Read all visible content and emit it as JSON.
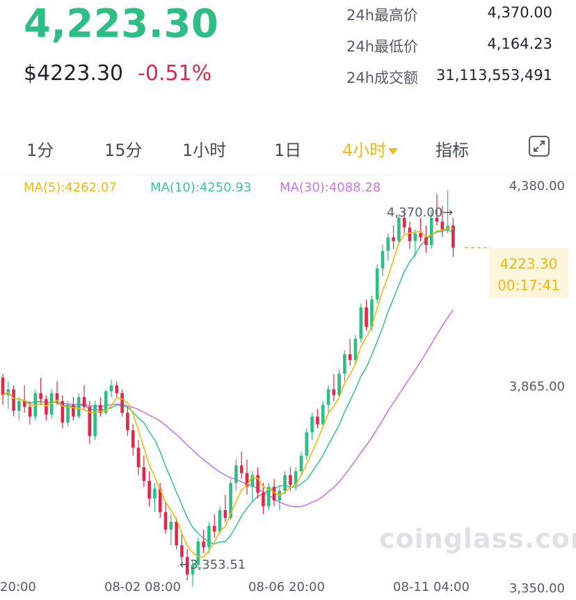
{
  "header": {
    "price": "4,223.30",
    "usd_price": "$4223.30",
    "change": "-0.51%"
  },
  "stats": [
    {
      "label": "24h最高价",
      "value": "4,370.00"
    },
    {
      "label": "24h最低价",
      "value": "4,164.23"
    },
    {
      "label": "24h成交额",
      "value": "31,113,553,491"
    }
  ],
  "tabs": [
    {
      "label": "1分",
      "active": false
    },
    {
      "label": "15分",
      "active": false
    },
    {
      "label": "1小时",
      "active": false
    },
    {
      "label": "1日",
      "active": false
    },
    {
      "label": "4小时",
      "active": true
    },
    {
      "label": "指标",
      "active": false
    }
  ],
  "indicators": {
    "ma5": "MA(5):4262.07",
    "ma10": "MA(10):4250.93",
    "ma30": "MA(30):4088.28"
  },
  "colors": {
    "up": "#2ebd85",
    "down": "#e0294a",
    "ma5": "#f0b90b",
    "ma10": "#3cc49a",
    "ma30": "#c777e8",
    "accent": "#f0b90b"
  },
  "icons": {
    "expand": "expand-icon",
    "dropdown": "chevron-down-icon"
  },
  "watermark": "coinglass.com",
  "chart_data": {
    "type": "candlestick",
    "y_ticks": [
      "4,380.00",
      "3,865.00",
      "3,350.00"
    ],
    "x_ticks": [
      "20:00",
      "08-02 08:00",
      "08-06 20:00",
      "08-11 04:00"
    ],
    "ylim": [
      3350,
      4380
    ],
    "current_price": "4223.30",
    "countdown": "00:17:41",
    "high_label": "4,370.00",
    "low_label": "3,353.51",
    "candles": [
      [
        3890,
        3900,
        3820,
        3845
      ],
      [
        3845,
        3880,
        3810,
        3860
      ],
      [
        3860,
        3870,
        3790,
        3805
      ],
      [
        3805,
        3840,
        3780,
        3830
      ],
      [
        3830,
        3870,
        3800,
        3815
      ],
      [
        3815,
        3830,
        3770,
        3790
      ],
      [
        3790,
        3860,
        3780,
        3850
      ],
      [
        3850,
        3890,
        3820,
        3835
      ],
      [
        3835,
        3845,
        3780,
        3795
      ],
      [
        3795,
        3860,
        3785,
        3850
      ],
      [
        3850,
        3880,
        3820,
        3830
      ],
      [
        3830,
        3845,
        3760,
        3775
      ],
      [
        3775,
        3830,
        3765,
        3820
      ],
      [
        3820,
        3840,
        3780,
        3790
      ],
      [
        3790,
        3850,
        3785,
        3840
      ],
      [
        3840,
        3870,
        3810,
        3815
      ],
      [
        3815,
        3830,
        3720,
        3740
      ],
      [
        3740,
        3830,
        3730,
        3820
      ],
      [
        3820,
        3840,
        3790,
        3800
      ],
      [
        3800,
        3860,
        3795,
        3855
      ],
      [
        3855,
        3885,
        3840,
        3870
      ],
      [
        3870,
        3880,
        3840,
        3850
      ],
      [
        3850,
        3860,
        3790,
        3800
      ],
      [
        3800,
        3815,
        3740,
        3755
      ],
      [
        3755,
        3770,
        3690,
        3710
      ],
      [
        3710,
        3730,
        3640,
        3660
      ],
      [
        3660,
        3690,
        3610,
        3625
      ],
      [
        3625,
        3650,
        3560,
        3580
      ],
      [
        3580,
        3620,
        3545,
        3605
      ],
      [
        3605,
        3620,
        3530,
        3545
      ],
      [
        3545,
        3570,
        3490,
        3500
      ],
      [
        3500,
        3540,
        3460,
        3520
      ],
      [
        3520,
        3530,
        3450,
        3460
      ],
      [
        3460,
        3490,
        3410,
        3430
      ],
      [
        3430,
        3450,
        3370,
        3385
      ],
      [
        3385,
        3420,
        3353.51,
        3410
      ],
      [
        3410,
        3480,
        3400,
        3470
      ],
      [
        3470,
        3500,
        3440,
        3455
      ],
      [
        3455,
        3520,
        3440,
        3510
      ],
      [
        3510,
        3540,
        3480,
        3495
      ],
      [
        3495,
        3560,
        3490,
        3550
      ],
      [
        3550,
        3590,
        3520,
        3530
      ],
      [
        3530,
        3630,
        3525,
        3620
      ],
      [
        3620,
        3680,
        3600,
        3665
      ],
      [
        3665,
        3700,
        3630,
        3645
      ],
      [
        3645,
        3680,
        3590,
        3610
      ],
      [
        3610,
        3650,
        3570,
        3640
      ],
      [
        3640,
        3660,
        3580,
        3595
      ],
      [
        3595,
        3620,
        3540,
        3560
      ],
      [
        3560,
        3620,
        3550,
        3610
      ],
      [
        3610,
        3630,
        3560,
        3575
      ],
      [
        3575,
        3610,
        3550,
        3600
      ],
      [
        3600,
        3650,
        3590,
        3640
      ],
      [
        3640,
        3660,
        3600,
        3615
      ],
      [
        3615,
        3660,
        3600,
        3650
      ],
      [
        3650,
        3700,
        3640,
        3690
      ],
      [
        3690,
        3760,
        3680,
        3750
      ],
      [
        3750,
        3800,
        3730,
        3790
      ],
      [
        3790,
        3810,
        3760,
        3770
      ],
      [
        3770,
        3830,
        3760,
        3820
      ],
      [
        3820,
        3870,
        3800,
        3860
      ],
      [
        3860,
        3900,
        3830,
        3845
      ],
      [
        3845,
        3910,
        3840,
        3900
      ],
      [
        3900,
        3960,
        3880,
        3950
      ],
      [
        3950,
        3990,
        3920,
        3935
      ],
      [
        3935,
        4000,
        3925,
        3990
      ],
      [
        3990,
        4080,
        3980,
        4070
      ],
      [
        4070,
        4090,
        4010,
        4020
      ],
      [
        4020,
        4100,
        4010,
        4090
      ],
      [
        4090,
        4180,
        4080,
        4170
      ],
      [
        4170,
        4230,
        4150,
        4215
      ],
      [
        4215,
        4260,
        4190,
        4250
      ],
      [
        4250,
        4280,
        4220,
        4240
      ],
      [
        4240,
        4310,
        4230,
        4300
      ],
      [
        4300,
        4320,
        4260,
        4275
      ],
      [
        4275,
        4290,
        4220,
        4240
      ],
      [
        4240,
        4270,
        4200,
        4260
      ],
      [
        4260,
        4300,
        4240,
        4250
      ],
      [
        4250,
        4280,
        4210,
        4230
      ],
      [
        4230,
        4320,
        4220,
        4300
      ],
      [
        4300,
        4360,
        4280,
        4290
      ],
      [
        4290,
        4330,
        4250,
        4270
      ],
      [
        4270,
        4370,
        4260,
        4280
      ],
      [
        4280,
        4300,
        4200,
        4223.3
      ]
    ]
  }
}
